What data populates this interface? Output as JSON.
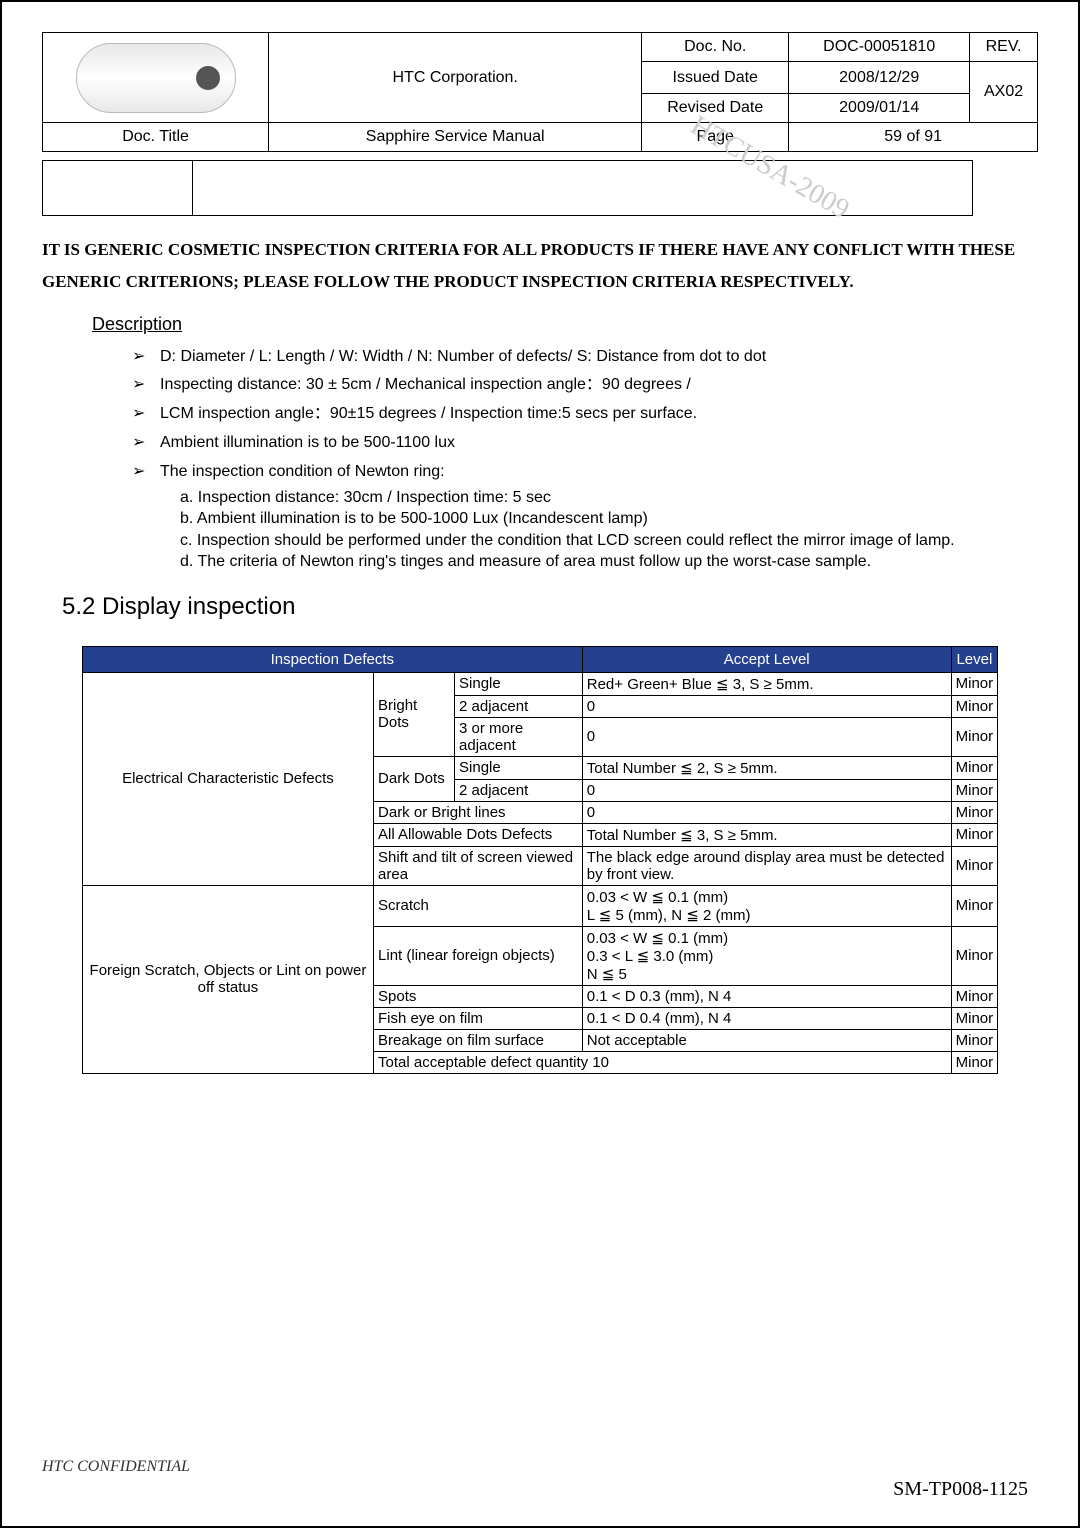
{
  "header": {
    "company": "HTC Corporation.",
    "docNoLabel": "Doc. No.",
    "docNo": "DOC-00051810",
    "revLabel": "REV.",
    "issuedLabel": "Issued Date",
    "issued": "2008/12/29",
    "revisedLabel": "Revised Date",
    "revised": "2009/01/14",
    "revVal": "AX02",
    "docTitleLabel": "Doc. Title",
    "docTitle": "Sapphire Service Manual",
    "pageLabel": "Page",
    "pageVal": "59  of  91"
  },
  "watermark": "HTCUSA-2009",
  "notice": "IT IS GENERIC COSMETIC INSPECTION CRITERIA FOR ALL PRODUCTS IF THERE HAVE ANY CONFLICT WITH THESE GENERIC CRITERIONS; PLEASE FOLLOW THE PRODUCT INSPECTION CRITERIA RESPECTIVELY.",
  "descHeading": "Description",
  "descItems": [
    "D: Diameter / L: Length / W: Width  / N: Number of defects/ S: Distance from dot to dot",
    "Inspecting distance: 30 ± 5cm / Mechanical inspection angle：90 degrees /",
    "LCM inspection angle：90±15 degrees / Inspection time:5 secs per surface.",
    "Ambient illumination is to be 500-1100 lux",
    "The inspection condition of Newton ring:"
  ],
  "subItems": [
    "a. Inspection distance: 30cm  / Inspection time: 5 sec",
    "b. Ambient illumination is to be 500-1000 Lux (Incandescent lamp)",
    "c. Inspection should be performed under the condition that LCD screen could reflect the mirror image of lamp.",
    "d. The criteria of Newton ring's tinges and measure of area must follow up the worst-case sample."
  ],
  "secTitle": "5.2  Display inspection",
  "tableHeaders": {
    "defects": "Inspection Defects",
    "accept": "Accept Level",
    "level": "Level"
  },
  "rows": {
    "electricalCat": "Electrical Characteristic Defects",
    "brightDots": "Bright Dots",
    "darkDots": "Dark Dots",
    "single": "Single",
    "adj2": "2 adjacent",
    "adj3": "3 or more adjacent",
    "darkBright": "Dark or Bright lines",
    "allDots": "All Allowable Dots Defects",
    "shift": "Shift and tilt of screen viewed area",
    "foreignCat": "Foreign Scratch, Objects or Lint on power off status",
    "scratch": "Scratch",
    "lint": "Lint (linear foreign objects)",
    "spots": "Spots",
    "fisheye": "Fish eye on film",
    "breakage": "Breakage on film surface",
    "totalQty": "Total acceptable defect quantity        10",
    "a_brightSingle": "Red+ Green+ Blue ≦ 3, S ≥ 5mm.",
    "a_zero": "0",
    "a_darkSingle": "Total Number ≦ 2, S ≥ 5mm.",
    "a_allDots": "Total Number ≦ 3, S ≥ 5mm.",
    "a_shift": "The black edge around display area must be detected by front view.",
    "a_scratch": "0.03 < W ≦ 0.1 (mm)\nL ≦ 5 (mm), N ≦ 2 (mm)",
    "a_lint": "0.03 < W ≦ 0.1 (mm)\n0.3  < L  ≦ 3.0 (mm)\nN ≦ 5",
    "a_spots": "0.1 < D     0.3 (mm), N      4",
    "a_fisheye": "0.1 < D     0.4 (mm), N      4",
    "a_breakage": "Not acceptable",
    "minor": "Minor"
  },
  "footerLeft": "HTC CONFIDENTIAL",
  "footerRight": "SM-TP008-1125"
}
